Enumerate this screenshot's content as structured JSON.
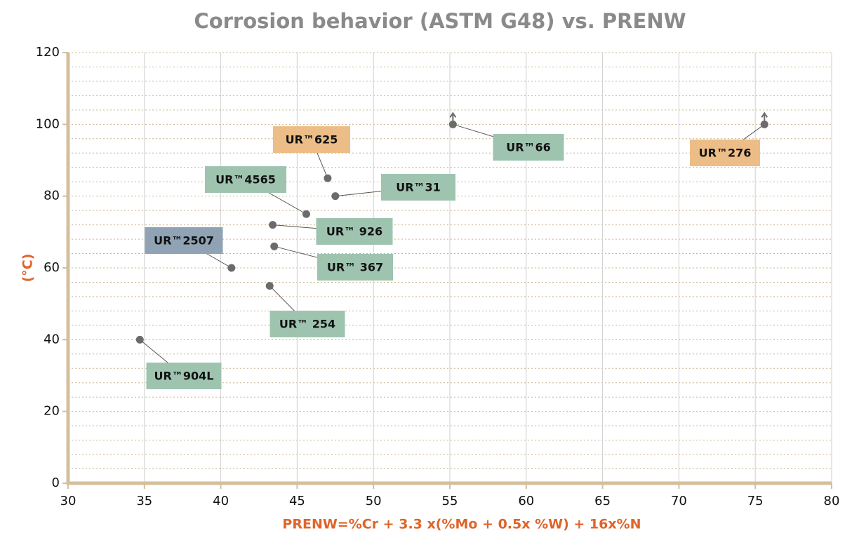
{
  "chart_data": {
    "type": "scatter",
    "title": "Corrosion behavior (ASTM G48) vs. PRENW",
    "x_label": "PRENW=%Cr + 3.3 x(%Mo + 0.5x %W) + 16x%N",
    "y_label": "(°C)",
    "labels": [
      "UR™904L",
      "UR™2507",
      "UR™ 254",
      "UR™ 367",
      "UR™ 926",
      "UR™4565",
      "UR™625",
      "UR™31",
      "UR™66",
      "UR™276"
    ],
    "x": [
      34.7,
      40.7,
      43.2,
      43.5,
      43.4,
      45.6,
      47.0,
      47.5,
      55.2,
      75.6
    ],
    "values": [
      40,
      60,
      55,
      66,
      72,
      75,
      85,
      80,
      100,
      100
    ],
    "label_colors": [
      "#9ec4b0",
      "#8fa3b5",
      "#9ec4b0",
      "#9ec4b0",
      "#9ec4b0",
      "#9ec4b0",
      "#ecbd86",
      "#9ec4b0",
      "#9ec4b0",
      "#ecbd86"
    ],
    "arrows": [
      false,
      false,
      false,
      false,
      false,
      false,
      false,
      false,
      true,
      true
    ],
    "point_color": "#6b6b6b",
    "xlim": [
      30,
      80
    ],
    "xticks": [
      30,
      35,
      40,
      45,
      50,
      55,
      60,
      65,
      70,
      75,
      80
    ],
    "ylim": [
      0,
      120
    ],
    "yticks": [
      0,
      20,
      40,
      60,
      80,
      100,
      120
    ],
    "yminorticks": [
      4,
      8,
      12,
      16,
      24,
      28,
      32,
      36,
      44,
      48,
      52,
      56,
      64,
      68,
      72,
      76,
      84,
      88,
      92,
      96,
      104,
      108,
      112,
      116
    ],
    "grid": true
  }
}
